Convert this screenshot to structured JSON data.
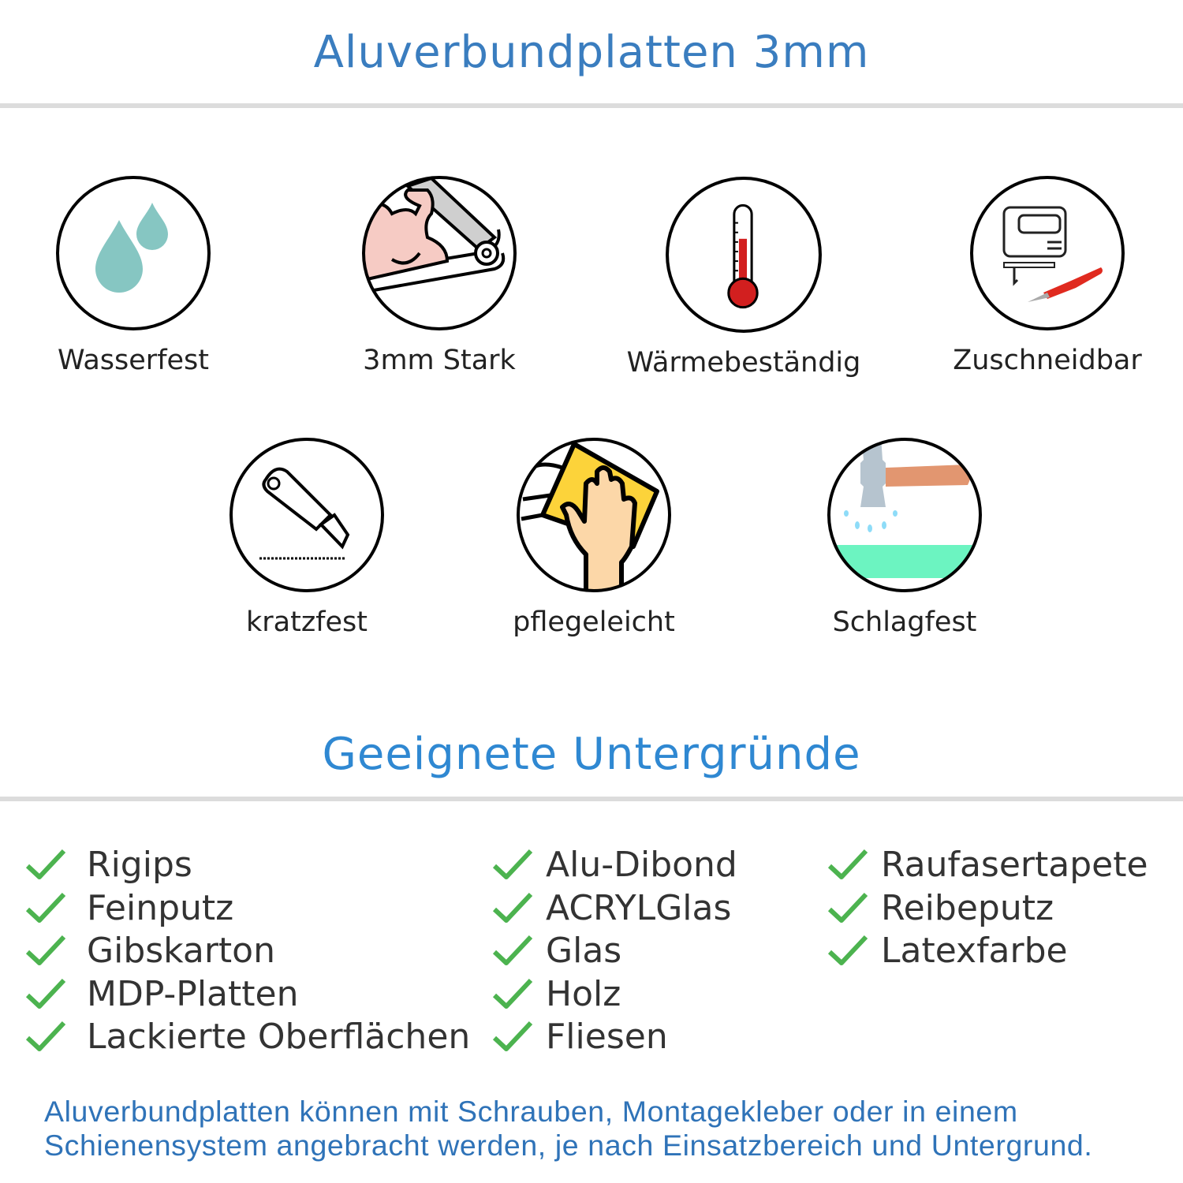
{
  "header": {
    "title": "Aluverbundplatten 3mm"
  },
  "features": [
    {
      "label": "Wasserfest",
      "icon": "water-drops-icon"
    },
    {
      "label": "3mm Stark",
      "icon": "strong-arm-icon"
    },
    {
      "label": "Wärmebeständig",
      "icon": "thermometer-icon"
    },
    {
      "label": "Zuschneidbar",
      "icon": "jigsaw-cutter-icon"
    },
    {
      "label": "kratzfest",
      "icon": "box-cutter-icon"
    },
    {
      "label": "pflegeleicht",
      "icon": "hand-cloth-icon"
    },
    {
      "label": "Schlagfest",
      "icon": "hammer-icon"
    }
  ],
  "surfaces": {
    "title": "Geeignete Untergründe",
    "check_color": "#4cb34f",
    "columns": [
      [
        "Rigips",
        "Feinputz",
        "Gibskarton",
        "MDP-Platten",
        "Lackierte Oberflächen"
      ],
      [
        "Alu-Dibond",
        "ACRYLGlas",
        "Glas",
        "Holz",
        "Fliesen"
      ],
      [
        "Raufasertapete",
        "Reibeputz",
        "Latexfarbe"
      ]
    ]
  },
  "footer": {
    "line1": "Aluverbundplatten können mit Schrauben, Montagekleber oder in einem",
    "line2": "Schienensystem angebracht werden, je nach Einsatzbereich und Untergrund."
  },
  "colors": {
    "title": "#3a7dbf",
    "subtitle": "#2f88d2",
    "footer": "#2f73b8",
    "rule": "#dcdcdc"
  }
}
